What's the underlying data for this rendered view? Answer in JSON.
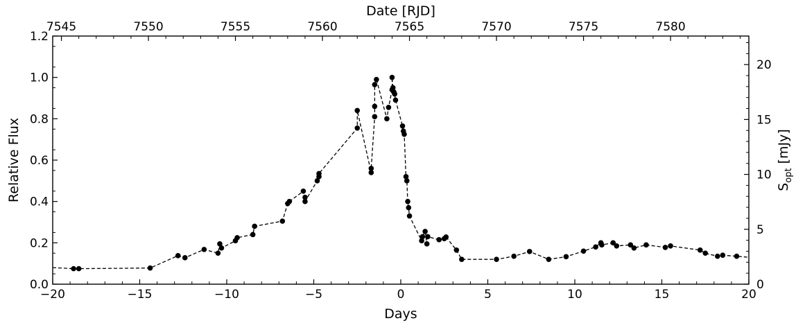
{
  "chart_data": {
    "type": "scatter",
    "xlabel": "Days",
    "ylabel": "Relative Flux",
    "top_xlabel": "Date [RJD]",
    "right_ylabel": "S",
    "right_ylabel_sub": "opt",
    "right_ylabel_unit": " [mJy]",
    "xlim": [
      -20,
      20
    ],
    "ylim": [
      0.0,
      1.2
    ],
    "top_xlim": [
      7544.5,
      7584.5
    ],
    "right_ylim": [
      0,
      22.6
    ],
    "grid": false,
    "x_ticks": [
      -20,
      -15,
      -10,
      -5,
      0,
      5,
      10,
      15,
      20
    ],
    "x_tick_labels": [
      "−20",
      "−15",
      "−10",
      "−5",
      "0",
      "5",
      "10",
      "15",
      "20"
    ],
    "y_ticks": [
      0.0,
      0.2,
      0.4,
      0.6,
      0.8,
      1.0,
      1.2
    ],
    "y_tick_labels": [
      "0.0",
      "0.2",
      "0.4",
      "0.6",
      "0.8",
      "1.0",
      "1.2"
    ],
    "top_ticks": [
      7545,
      7550,
      7555,
      7560,
      7565,
      7570,
      7575,
      7580
    ],
    "top_tick_labels": [
      "7545",
      "7550",
      "7555",
      "7560",
      "7565",
      "7570",
      "7575",
      "7580"
    ],
    "right_ticks": [
      0,
      5,
      10,
      15,
      20
    ],
    "right_tick_labels": [
      "0",
      "5",
      "10",
      "15",
      "20"
    ],
    "series": [
      {
        "style": "black dots joined by dashed line",
        "x": [
          -20.0,
          -18.8,
          -18.5,
          -14.4,
          -12.8,
          -12.4,
          -11.3,
          -10.5,
          -10.4,
          -10.3,
          -9.5,
          -9.4,
          -8.5,
          -8.4,
          -6.8,
          -6.5,
          -6.4,
          -5.6,
          -5.5,
          -5.5,
          -4.8,
          -4.7,
          -4.7,
          -2.5,
          -2.5,
          -1.7,
          -1.7,
          -1.5,
          -1.5,
          -1.5,
          -1.4,
          -0.8,
          -0.7,
          -0.5,
          -0.5,
          -0.45,
          -0.4,
          -0.35,
          -0.3,
          0.1,
          0.15,
          0.2,
          0.3,
          0.35,
          0.4,
          0.45,
          0.5,
          1.2,
          1.25,
          1.4,
          1.5,
          1.55,
          2.2,
          2.5,
          2.6,
          3.2,
          3.5,
          5.5,
          6.5,
          7.4,
          8.5,
          9.5,
          10.5,
          11.2,
          11.5,
          11.55,
          12.2,
          12.4,
          13.2,
          13.4,
          14.1,
          15.2,
          15.5,
          17.2,
          17.5,
          18.2,
          18.5,
          19.3,
          20.0
        ],
        "y": [
          0.08,
          0.075,
          0.075,
          0.078,
          0.138,
          0.128,
          0.168,
          0.15,
          0.195,
          0.175,
          0.21,
          0.225,
          0.24,
          0.28,
          0.305,
          0.39,
          0.4,
          0.45,
          0.42,
          0.4,
          0.5,
          0.52,
          0.535,
          0.755,
          0.84,
          0.54,
          0.56,
          0.81,
          0.86,
          0.965,
          0.99,
          0.8,
          0.855,
          0.94,
          1.0,
          0.95,
          0.93,
          0.92,
          0.89,
          0.765,
          0.74,
          0.725,
          0.52,
          0.5,
          0.4,
          0.37,
          0.33,
          0.21,
          0.23,
          0.255,
          0.195,
          0.23,
          0.215,
          0.22,
          0.228,
          0.165,
          0.12,
          0.12,
          0.135,
          0.158,
          0.12,
          0.133,
          0.16,
          0.18,
          0.2,
          0.19,
          0.2,
          0.185,
          0.19,
          0.175,
          0.19,
          0.178,
          0.185,
          0.165,
          0.15,
          0.135,
          0.14,
          0.135,
          0.13
        ]
      }
    ]
  }
}
